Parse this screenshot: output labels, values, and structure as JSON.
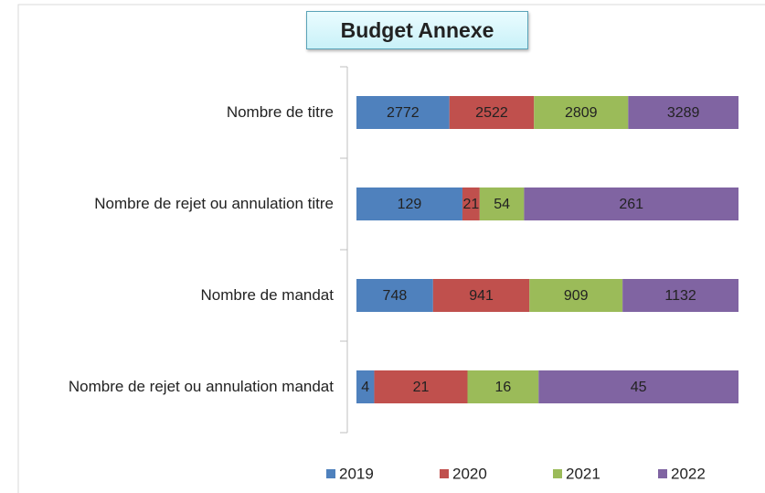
{
  "chart_data": {
    "type": "bar",
    "orientation": "horizontal",
    "stacked": "percent",
    "title": "Budget Annexe",
    "categories": [
      "Nombre de titre",
      "Nombre de rejet ou annulation titre",
      "Nombre de mandat",
      "Nombre de rejet ou annulation mandat"
    ],
    "series": [
      {
        "name": "2019",
        "color": "#4f81bd",
        "values": [
          2772,
          129,
          748,
          4
        ]
      },
      {
        "name": "2020",
        "color": "#c0504d",
        "values": [
          2522,
          21,
          941,
          21
        ]
      },
      {
        "name": "2021",
        "color": "#9bbb59",
        "values": [
          2809,
          54,
          909,
          16
        ]
      },
      {
        "name": "2022",
        "color": "#8064a2",
        "values": [
          3289,
          261,
          1132,
          45
        ]
      }
    ],
    "legend": "bottom"
  }
}
